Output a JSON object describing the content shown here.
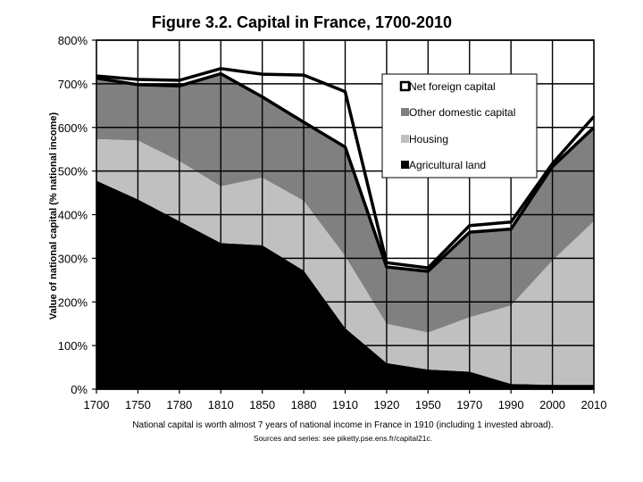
{
  "chart_data": {
    "type": "area",
    "title": "Figure 3.2. Capital in France, 1700-2010",
    "ylabel": "Value of national capital (% national income)",
    "xlabel": "",
    "categories": [
      "1700",
      "1750",
      "1780",
      "1810",
      "1850",
      "1880",
      "1910",
      "1920",
      "1950",
      "1970",
      "1990",
      "2000",
      "2010"
    ],
    "ylim": [
      0,
      800
    ],
    "yticks": [
      "0%",
      "100%",
      "200%",
      "300%",
      "400%",
      "500%",
      "600%",
      "700%",
      "800%"
    ],
    "grid": true,
    "legend_position": "top-right",
    "stacked_series": [
      {
        "name": "Agricultural land",
        "color": "#000000",
        "values": [
          478,
          435,
          385,
          335,
          330,
          272,
          140,
          60,
          45,
          40,
          12,
          10,
          10
        ]
      },
      {
        "name": "Housing",
        "color": "#c0c0c0",
        "values": [
          95,
          135,
          138,
          130,
          155,
          160,
          165,
          90,
          85,
          125,
          180,
          285,
          375
        ]
      },
      {
        "name": "Other domestic capital",
        "color": "#808080",
        "values": [
          140,
          128,
          172,
          258,
          185,
          180,
          250,
          130,
          140,
          195,
          175,
          215,
          215
        ]
      }
    ],
    "net_foreign_capital": {
      "name": "Net foreign capital",
      "color": "#000000",
      "upper_values": [
        718,
        710,
        708,
        735,
        722,
        720,
        682,
        290,
        278,
        375,
        383,
        517,
        625
      ],
      "bottom_values": [
        713,
        698,
        695,
        723,
        670,
        612,
        555,
        280,
        270,
        360,
        367,
        510,
        600
      ]
    },
    "legend": [
      "Net foreign capital",
      "Other domestic capital",
      "Housing",
      "Agricultural land"
    ],
    "caption": "National capital is worth almost 7 years of national income in France in 1910 (including 1 invested abroad).",
    "source": "Sources and series: see piketty.pse.ens.fr/capital21c."
  }
}
